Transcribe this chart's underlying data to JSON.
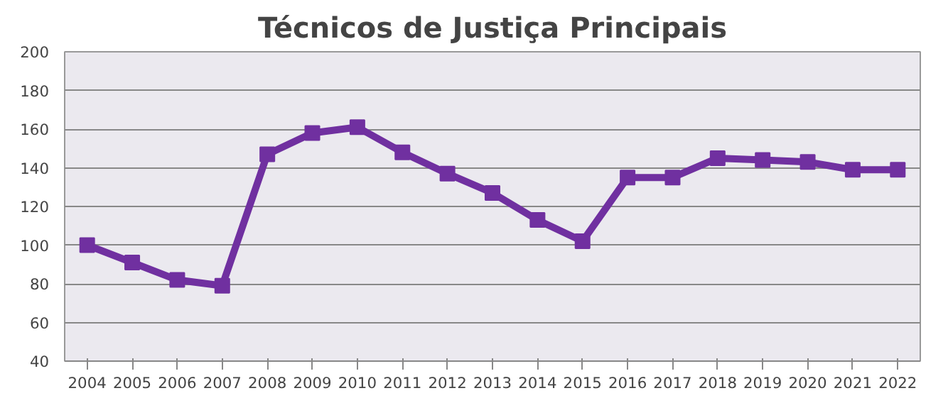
{
  "chart_data": {
    "type": "line",
    "title": "Técnicos de Justiça Principais",
    "categories": [
      "2004",
      "2005",
      "2006",
      "2007",
      "2008",
      "2009",
      "2010",
      "2011",
      "2012",
      "2013",
      "2014",
      "2015",
      "2016",
      "2017",
      "2018",
      "2019",
      "2020",
      "2021",
      "2022"
    ],
    "series": [
      {
        "color": "#7030a0",
        "values": [
          100,
          91,
          82,
          79,
          147,
          158,
          161,
          148,
          137,
          127,
          113,
          102,
          135,
          135,
          145,
          144,
          143,
          139,
          139
        ]
      }
    ],
    "ylim": [
      40,
      200
    ],
    "yticks": [
      40,
      60,
      80,
      100,
      120,
      140,
      160,
      180,
      200
    ],
    "grid": "y",
    "marker": "square",
    "line_style": "solid"
  }
}
